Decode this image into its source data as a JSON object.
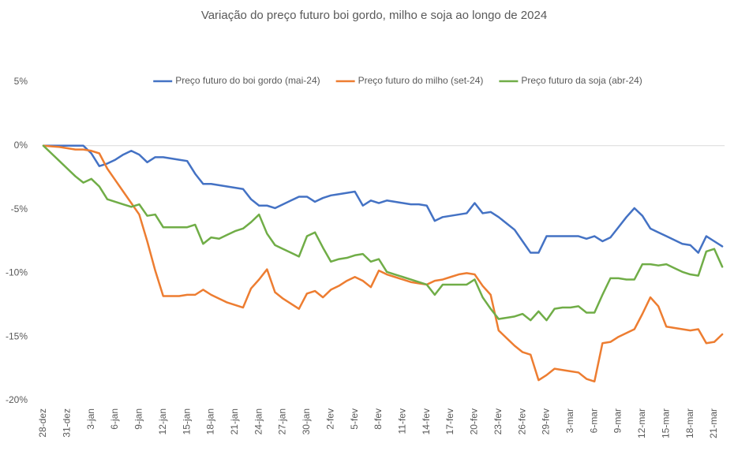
{
  "chart_data": {
    "type": "line",
    "title": "Variação do preço futuro boi gordo, milho e soja ao longo de 2024",
    "categories": [
      "28-dez",
      null,
      null,
      "31-dez",
      null,
      null,
      "3-jan",
      null,
      null,
      "6-jan",
      null,
      null,
      "9-jan",
      null,
      null,
      "12-jan",
      null,
      null,
      "15-jan",
      null,
      null,
      "18-jan",
      null,
      null,
      "21-jan",
      null,
      null,
      "24-jan",
      null,
      null,
      "27-jan",
      null,
      null,
      "30-jan",
      null,
      null,
      "2-fev",
      null,
      null,
      "5-fev",
      null,
      null,
      "8-fev",
      null,
      null,
      "11-fev",
      null,
      null,
      "14-fev",
      null,
      null,
      "17-fev",
      null,
      null,
      "20-fev",
      null,
      null,
      "23-fev",
      null,
      null,
      "26-fev",
      null,
      null,
      "29-fev",
      null,
      null,
      "3-mar",
      null,
      null,
      "6-mar",
      null,
      null,
      "9-mar",
      null,
      null,
      "12-mar",
      null,
      null,
      "15-mar",
      null,
      null,
      "18-mar",
      null,
      null,
      "21-mar",
      null
    ],
    "series": [
      {
        "name": "Preço futuro do boi gordo (mai-24)",
        "color": "#4472c4",
        "values": [
          0,
          0,
          0,
          0,
          0,
          0,
          -0.6,
          -1.6,
          -1.4,
          -1.1,
          -0.7,
          -0.4,
          -0.7,
          -1.3,
          -0.9,
          -0.9,
          -1.0,
          -1.1,
          -1.2,
          -2.2,
          -3.0,
          -3.0,
          -3.1,
          -3.2,
          -3.3,
          -3.4,
          -4.2,
          -4.7,
          -4.7,
          -4.9,
          -4.6,
          -4.3,
          -4.0,
          -4.0,
          -4.4,
          -4.1,
          -3.9,
          -3.8,
          -3.7,
          -3.6,
          -4.7,
          -4.3,
          -4.5,
          -4.3,
          -4.4,
          -4.5,
          -4.6,
          -4.6,
          -4.7,
          -5.9,
          -5.6,
          -5.5,
          -5.4,
          -5.3,
          -4.5,
          -5.3,
          -5.2,
          -5.6,
          -6.1,
          -6.6,
          -7.5,
          -8.4,
          -8.4,
          -7.1,
          -7.1,
          -7.1,
          -7.1,
          -7.1,
          -7.3,
          -7.1,
          -7.5,
          -7.2,
          -6.4,
          -5.6,
          -4.9,
          -5.5,
          -6.5,
          -6.8,
          -7.1,
          -7.4,
          -7.7,
          -7.8,
          -8.4,
          -7.1,
          -7.5,
          -7.9
        ]
      },
      {
        "name": "Preço futuro do milho (set-24)",
        "color": "#ed7d31",
        "values": [
          0,
          -0.05,
          -0.1,
          -0.2,
          -0.3,
          -0.3,
          -0.4,
          -0.6,
          -1.8,
          -2.7,
          -3.6,
          -4.5,
          -5.4,
          -7.5,
          -9.8,
          -11.8,
          -11.8,
          -11.8,
          -11.7,
          -11.7,
          -11.3,
          -11.7,
          -12.0,
          -12.3,
          -12.5,
          -12.7,
          -11.2,
          -10.5,
          -9.7,
          -11.5,
          -12.0,
          -12.4,
          -12.8,
          -11.6,
          -11.4,
          -11.9,
          -11.3,
          -11.0,
          -10.6,
          -10.3,
          -10.6,
          -11.1,
          -9.8,
          -10.1,
          -10.3,
          -10.5,
          -10.7,
          -10.8,
          -10.9,
          -10.6,
          -10.5,
          -10.3,
          -10.1,
          -10.0,
          -10.1,
          -11.0,
          -11.7,
          -14.5,
          -15.1,
          -15.7,
          -16.2,
          -16.4,
          -18.4,
          -18.0,
          -17.5,
          -17.6,
          -17.7,
          -17.8,
          -18.3,
          -18.5,
          -15.5,
          -15.4,
          -15.0,
          -14.7,
          -14.4,
          -13.2,
          -11.9,
          -12.6,
          -14.2,
          -14.3,
          -14.4,
          -14.5,
          -14.4,
          -15.5,
          -15.4,
          -14.8
        ]
      },
      {
        "name": "Preço futuro da soja (abr-24)",
        "color": "#70ad47",
        "values": [
          0,
          -0.6,
          -1.2,
          -1.8,
          -2.4,
          -2.9,
          -2.6,
          -3.2,
          -4.2,
          -4.4,
          -4.6,
          -4.8,
          -4.6,
          -5.5,
          -5.4,
          -6.4,
          -6.4,
          -6.4,
          -6.4,
          -6.2,
          -7.7,
          -7.2,
          -7.3,
          -7.0,
          -6.7,
          -6.5,
          -6.0,
          -5.4,
          -6.9,
          -7.8,
          -8.1,
          -8.4,
          -8.7,
          -7.1,
          -6.8,
          -8.0,
          -9.1,
          -8.9,
          -8.8,
          -8.6,
          -8.5,
          -9.1,
          -8.9,
          -9.9,
          -10.1,
          -10.3,
          -10.5,
          -10.7,
          -10.9,
          -11.7,
          -10.9,
          -10.9,
          -10.9,
          -10.9,
          -10.5,
          -11.9,
          -12.8,
          -13.6,
          -13.5,
          -13.4,
          -13.2,
          -13.7,
          -13.0,
          -13.7,
          -12.8,
          -12.7,
          -12.7,
          -12.6,
          -13.1,
          -13.1,
          -11.7,
          -10.4,
          -10.4,
          -10.5,
          -10.5,
          -9.3,
          -9.3,
          -9.4,
          -9.3,
          -9.6,
          -9.9,
          -10.1,
          -10.2,
          -8.3,
          -8.1,
          -9.5
        ]
      }
    ],
    "ylim": [
      -20,
      5
    ],
    "yticks": [
      {
        "value": 5,
        "label": "5%"
      },
      {
        "value": 0,
        "label": "0%"
      },
      {
        "value": -5,
        "label": "-5%"
      },
      {
        "value": -10,
        "label": "-10%"
      },
      {
        "value": -15,
        "label": "-15%"
      },
      {
        "value": -20,
        "label": "-20%"
      }
    ],
    "legend": "top"
  }
}
